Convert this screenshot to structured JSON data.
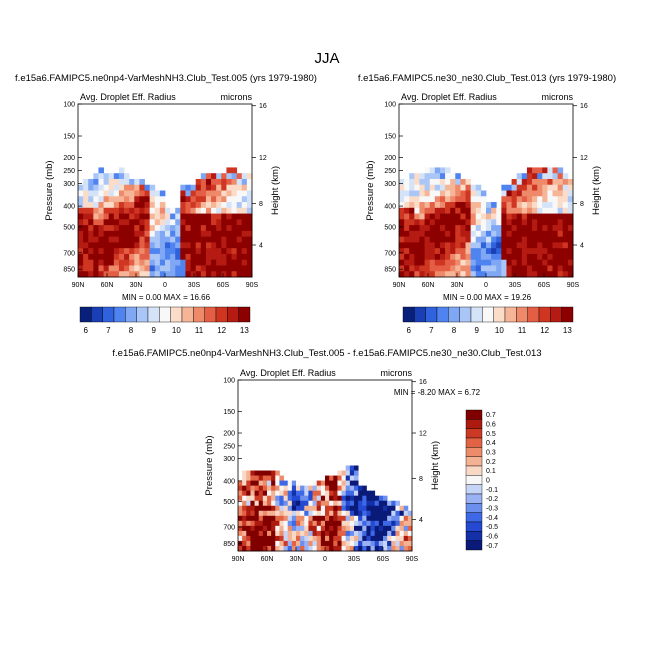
{
  "figure": {
    "title": "JJA"
  },
  "colors": {
    "ctl_scale": [
      "#08207a",
      "#1a3fb5",
      "#2f62dc",
      "#4f84f0",
      "#7fa7f4",
      "#aac6f6",
      "#d4e3f8",
      "#f8f8f8",
      "#fbdcc8",
      "#f6b597",
      "#ee8a6a",
      "#e35e44",
      "#cf3622",
      "#b51b12",
      "#8c0000"
    ],
    "diff_scale": [
      "#0a1a78",
      "#1330a8",
      "#2549d0",
      "#3d68e6",
      "#6c8fee",
      "#9ab2f3",
      "#c5d4f7",
      "#f7f7f7",
      "#fad8c6",
      "#f4b294",
      "#ec8c6a",
      "#e26244",
      "#cc3a26",
      "#ad1a10",
      "#800000"
    ]
  },
  "chart_data": [
    {
      "type": "heatmap",
      "name": "top-left",
      "title": "f.e15a6.FAMIPC5.ne0np4-VarMeshNH3.Club_Test.005 (yrs 1979-1980)",
      "left_label": "Avg. Droplet Eff. Radius",
      "right_label": "microns",
      "ylabel": "Pressure (mb)",
      "y2label": "Height (km)",
      "x_ticks": [
        "90N",
        "60N",
        "30N",
        "0",
        "30S",
        "60S",
        "90S"
      ],
      "y_ticks": [
        "100",
        "150",
        "200",
        "250",
        "300",
        "400",
        "500",
        "700",
        "850"
      ],
      "y2_ticks": [
        "16",
        "12",
        "8",
        "4"
      ],
      "stats": {
        "min_label": "MIN =",
        "min": "0.00",
        "max_label": "MAX =",
        "max": "16.66"
      },
      "colorbar_labels": [
        "6",
        "7",
        "8",
        "9",
        "10",
        "11",
        "12",
        "13"
      ],
      "variant": 0
    },
    {
      "type": "heatmap",
      "name": "top-right",
      "title": "f.e15a6.FAMIPC5.ne30_ne30.Club_Test.013 (yrs 1979-1980)",
      "left_label": "Avg. Droplet Eff. Radius",
      "right_label": "microns",
      "ylabel": "Pressure (mb)",
      "y2label": "Height (km)",
      "x_ticks": [
        "90N",
        "60N",
        "30N",
        "0",
        "30S",
        "60S",
        "90S"
      ],
      "y_ticks": [
        "100",
        "150",
        "200",
        "250",
        "300",
        "400",
        "500",
        "700",
        "850"
      ],
      "y2_ticks": [
        "16",
        "12",
        "8",
        "4"
      ],
      "stats": {
        "min_label": "MIN =",
        "min": "0.00",
        "max_label": "MAX =",
        "max": "19.26"
      },
      "colorbar_labels": [
        "6",
        "7",
        "8",
        "9",
        "10",
        "11",
        "12",
        "13"
      ],
      "variant": 1
    },
    {
      "type": "heatmap",
      "name": "difference",
      "title": "f.e15a6.FAMIPC5.ne0np4-VarMeshNH3.Club_Test.005 - f.e15a6.FAMIPC5.ne30_ne30.Club_Test.013",
      "left_label": "Avg. Droplet Eff. Radius",
      "right_label": "microns",
      "ylabel": "Pressure (mb)",
      "y2label": "Height (km)",
      "x_ticks": [
        "90N",
        "60N",
        "30N",
        "0",
        "30S",
        "60S",
        "90S"
      ],
      "y_ticks": [
        "100",
        "150",
        "200",
        "250",
        "300",
        "400",
        "500",
        "700",
        "850"
      ],
      "y2_ticks": [
        "16",
        "12",
        "8",
        "4"
      ],
      "stats": {
        "min_label": "MIN =",
        "min": "-8.20",
        "max_label": "MAX =",
        "max": "6.72"
      },
      "colorbar_labels": [
        "0.7",
        "0.6",
        "0.5",
        "0.4",
        "0.3",
        "0.2",
        "0.1",
        "0",
        "-0.1",
        "-0.2",
        "-0.3",
        "-0.4",
        "-0.5",
        "-0.6",
        "-0.7"
      ]
    }
  ]
}
